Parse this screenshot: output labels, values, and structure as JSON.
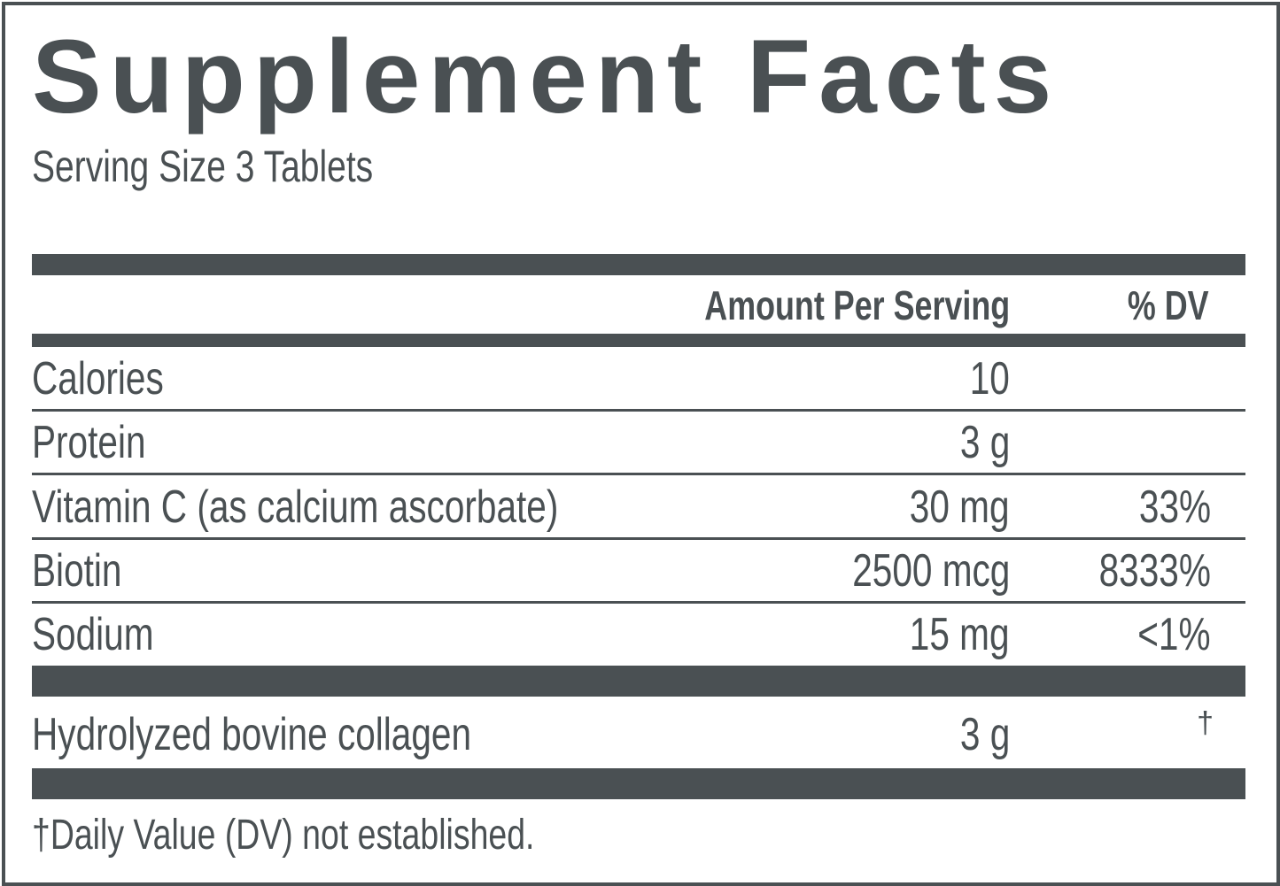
{
  "title": "Supplement Facts",
  "serving_size": "Serving Size 3 Tablets",
  "headers": {
    "amount": "Amount Per Serving",
    "dv": "% DV"
  },
  "rows": [
    {
      "name": "Calories",
      "amount": "10",
      "dv": ""
    },
    {
      "name": "Protein",
      "amount": "3 g",
      "dv": ""
    },
    {
      "name": "Vitamin C (as calcium ascorbate)",
      "amount": "30 mg",
      "dv": "33%"
    },
    {
      "name": "Biotin",
      "amount": "2500 mcg",
      "dv": "8333%"
    },
    {
      "name": "Sodium",
      "amount": "15 mg",
      "dv": "<1%"
    }
  ],
  "other": {
    "name": "Hydrolyzed bovine collagen",
    "amount": "3 g",
    "dv": "†"
  },
  "footnote": "†Daily Value (DV) not established.",
  "colors": {
    "ink": "#4a5053"
  }
}
